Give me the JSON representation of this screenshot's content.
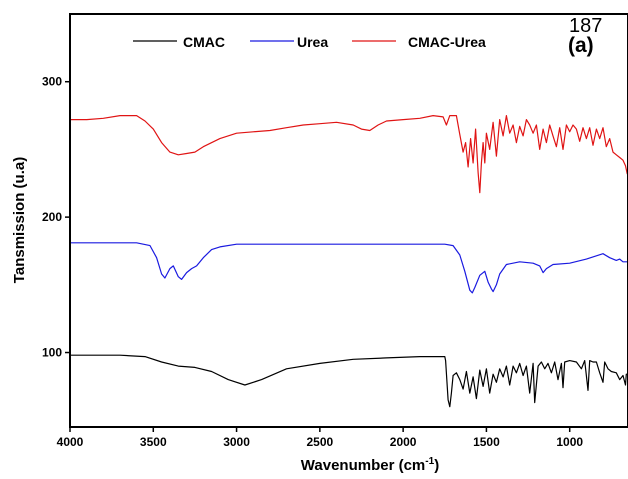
{
  "page_number": "187",
  "chart_data": {
    "type": "line",
    "panel_label": "(a)",
    "xlabel": "Wavenumber (cm",
    "xlabel_sup": "-1",
    "xlabel_close": ")",
    "ylabel": "Tansmission (u.a)",
    "xlim": [
      4000,
      650
    ],
    "x_reversed": true,
    "ylim": [
      45,
      350
    ],
    "x_ticks": [
      {
        "value": 4000,
        "label": "4000"
      },
      {
        "value": 3500,
        "label": "3500"
      },
      {
        "value": 3000,
        "label": "3000"
      },
      {
        "value": 2500,
        "label": "2500"
      },
      {
        "value": 2000,
        "label": "2000"
      },
      {
        "value": 1500,
        "label": "1500"
      },
      {
        "value": 1000,
        "label": "1000"
      }
    ],
    "y_ticks": [
      {
        "value": 100,
        "label": "100"
      },
      {
        "value": 200,
        "label": "200"
      },
      {
        "value": 300,
        "label": "300"
      }
    ],
    "legend_position": "top",
    "series": [
      {
        "name": "CMAC",
        "color": "#000000",
        "points": [
          [
            4000,
            98
          ],
          [
            3700,
            98
          ],
          [
            3550,
            97
          ],
          [
            3450,
            93
          ],
          [
            3350,
            90
          ],
          [
            3250,
            89
          ],
          [
            3150,
            86
          ],
          [
            3050,
            80
          ],
          [
            2950,
            76
          ],
          [
            2850,
            80
          ],
          [
            2700,
            88
          ],
          [
            2500,
            92
          ],
          [
            2300,
            95
          ],
          [
            2100,
            96
          ],
          [
            1900,
            97
          ],
          [
            1750,
            97
          ],
          [
            1745,
            94
          ],
          [
            1730,
            65
          ],
          [
            1720,
            60
          ],
          [
            1710,
            70
          ],
          [
            1700,
            83
          ],
          [
            1680,
            85
          ],
          [
            1660,
            80
          ],
          [
            1640,
            73
          ],
          [
            1620,
            86
          ],
          [
            1600,
            70
          ],
          [
            1580,
            82
          ],
          [
            1560,
            66
          ],
          [
            1540,
            87
          ],
          [
            1520,
            75
          ],
          [
            1500,
            88
          ],
          [
            1480,
            70
          ],
          [
            1460,
            84
          ],
          [
            1440,
            78
          ],
          [
            1420,
            88
          ],
          [
            1400,
            82
          ],
          [
            1380,
            90
          ],
          [
            1360,
            76
          ],
          [
            1340,
            90
          ],
          [
            1320,
            85
          ],
          [
            1300,
            92
          ],
          [
            1280,
            83
          ],
          [
            1260,
            90
          ],
          [
            1240,
            70
          ],
          [
            1220,
            92
          ],
          [
            1210,
            63
          ],
          [
            1190,
            90
          ],
          [
            1170,
            93
          ],
          [
            1150,
            88
          ],
          [
            1130,
            92
          ],
          [
            1110,
            85
          ],
          [
            1090,
            93
          ],
          [
            1070,
            80
          ],
          [
            1050,
            92
          ],
          [
            1040,
            74
          ],
          [
            1030,
            93
          ],
          [
            1000,
            94
          ],
          [
            960,
            93
          ],
          [
            930,
            88
          ],
          [
            910,
            94
          ],
          [
            890,
            72
          ],
          [
            880,
            94
          ],
          [
            860,
            93
          ],
          [
            840,
            93
          ],
          [
            820,
            85
          ],
          [
            800,
            78
          ],
          [
            790,
            93
          ],
          [
            770,
            88
          ],
          [
            750,
            86
          ],
          [
            720,
            85
          ],
          [
            700,
            80
          ],
          [
            680,
            83
          ],
          [
            665,
            76
          ],
          [
            660,
            84
          ],
          [
            650,
            84
          ]
        ]
      },
      {
        "name": "Urea",
        "color": "#1a1ae0",
        "points": [
          [
            4000,
            181
          ],
          [
            3800,
            181
          ],
          [
            3600,
            181
          ],
          [
            3520,
            179
          ],
          [
            3480,
            170
          ],
          [
            3450,
            158
          ],
          [
            3430,
            155
          ],
          [
            3400,
            162
          ],
          [
            3380,
            164
          ],
          [
            3350,
            156
          ],
          [
            3330,
            154
          ],
          [
            3300,
            159
          ],
          [
            3270,
            162
          ],
          [
            3240,
            164
          ],
          [
            3200,
            170
          ],
          [
            3150,
            176
          ],
          [
            3100,
            178
          ],
          [
            3000,
            180
          ],
          [
            2800,
            180
          ],
          [
            2500,
            180
          ],
          [
            2200,
            180
          ],
          [
            2000,
            180
          ],
          [
            1750,
            180
          ],
          [
            1700,
            179
          ],
          [
            1660,
            172
          ],
          [
            1630,
            160
          ],
          [
            1600,
            146
          ],
          [
            1585,
            144
          ],
          [
            1570,
            148
          ],
          [
            1540,
            157
          ],
          [
            1510,
            160
          ],
          [
            1490,
            152
          ],
          [
            1470,
            147
          ],
          [
            1460,
            145
          ],
          [
            1440,
            150
          ],
          [
            1420,
            158
          ],
          [
            1380,
            165
          ],
          [
            1300,
            167
          ],
          [
            1220,
            166
          ],
          [
            1180,
            164
          ],
          [
            1160,
            159
          ],
          [
            1140,
            162
          ],
          [
            1100,
            165
          ],
          [
            1000,
            166
          ],
          [
            900,
            169
          ],
          [
            800,
            173
          ],
          [
            760,
            170
          ],
          [
            720,
            168
          ],
          [
            700,
            169
          ],
          [
            680,
            167
          ],
          [
            650,
            167
          ]
        ]
      },
      {
        "name": "CMAC-Urea",
        "color": "#e01414",
        "points": [
          [
            4000,
            272
          ],
          [
            3900,
            272
          ],
          [
            3800,
            273
          ],
          [
            3700,
            275
          ],
          [
            3600,
            275
          ],
          [
            3550,
            271
          ],
          [
            3500,
            265
          ],
          [
            3450,
            255
          ],
          [
            3400,
            248
          ],
          [
            3350,
            246
          ],
          [
            3300,
            247
          ],
          [
            3250,
            248
          ],
          [
            3200,
            252
          ],
          [
            3100,
            258
          ],
          [
            3000,
            262
          ],
          [
            2900,
            263
          ],
          [
            2800,
            264
          ],
          [
            2700,
            266
          ],
          [
            2600,
            268
          ],
          [
            2500,
            269
          ],
          [
            2400,
            270
          ],
          [
            2300,
            268
          ],
          [
            2250,
            265
          ],
          [
            2200,
            264
          ],
          [
            2150,
            268
          ],
          [
            2100,
            271
          ],
          [
            2000,
            272
          ],
          [
            1900,
            273
          ],
          [
            1820,
            275
          ],
          [
            1760,
            274
          ],
          [
            1740,
            268
          ],
          [
            1720,
            275
          ],
          [
            1680,
            275
          ],
          [
            1660,
            261
          ],
          [
            1640,
            248
          ],
          [
            1625,
            255
          ],
          [
            1610,
            237
          ],
          [
            1595,
            258
          ],
          [
            1580,
            240
          ],
          [
            1565,
            265
          ],
          [
            1550,
            233
          ],
          [
            1540,
            218
          ],
          [
            1530,
            240
          ],
          [
            1520,
            255
          ],
          [
            1510,
            240
          ],
          [
            1500,
            262
          ],
          [
            1480,
            250
          ],
          [
            1460,
            270
          ],
          [
            1440,
            245
          ],
          [
            1420,
            272
          ],
          [
            1400,
            260
          ],
          [
            1380,
            275
          ],
          [
            1360,
            262
          ],
          [
            1340,
            268
          ],
          [
            1320,
            255
          ],
          [
            1300,
            267
          ],
          [
            1280,
            260
          ],
          [
            1260,
            272
          ],
          [
            1240,
            268
          ],
          [
            1220,
            262
          ],
          [
            1200,
            268
          ],
          [
            1180,
            250
          ],
          [
            1160,
            265
          ],
          [
            1140,
            255
          ],
          [
            1120,
            268
          ],
          [
            1100,
            260
          ],
          [
            1080,
            252
          ],
          [
            1060,
            266
          ],
          [
            1040,
            250
          ],
          [
            1020,
            268
          ],
          [
            1000,
            263
          ],
          [
            980,
            268
          ],
          [
            960,
            265
          ],
          [
            940,
            256
          ],
          [
            920,
            266
          ],
          [
            900,
            258
          ],
          [
            880,
            266
          ],
          [
            860,
            253
          ],
          [
            840,
            265
          ],
          [
            820,
            258
          ],
          [
            800,
            266
          ],
          [
            780,
            252
          ],
          [
            760,
            258
          ],
          [
            740,
            248
          ],
          [
            720,
            246
          ],
          [
            700,
            244
          ],
          [
            680,
            242
          ],
          [
            665,
            238
          ],
          [
            655,
            232
          ],
          [
            650,
            236
          ]
        ]
      }
    ]
  }
}
